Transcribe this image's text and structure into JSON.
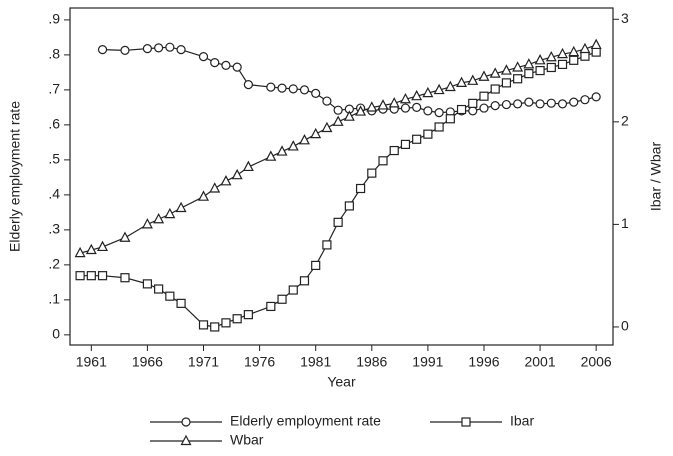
{
  "chart_data": {
    "type": "line",
    "xlabel": "Year",
    "ylabel": "Elderly employment rate",
    "y2label": "Ibar / Wbar",
    "x": [
      1960,
      1961,
      1962,
      1964,
      1966,
      1967,
      1968,
      1969,
      1971,
      1972,
      1973,
      1974,
      1975,
      1977,
      1978,
      1979,
      1980,
      1981,
      1982,
      1983,
      1984,
      1985,
      1986,
      1987,
      1988,
      1989,
      1990,
      1991,
      1992,
      1993,
      1994,
      1995,
      1996,
      1997,
      1998,
      1999,
      2000,
      2001,
      2002,
      2003,
      2004,
      2005,
      2006
    ],
    "xlim": [
      1959.1,
      2007.5
    ],
    "xticks": [
      1961,
      1966,
      1971,
      1976,
      1981,
      1986,
      1991,
      1996,
      2001,
      2006
    ],
    "ylim": [
      -0.029,
      0.934
    ],
    "yticks": [
      {
        "value": 0,
        "label": "0"
      },
      {
        "value": 0.1,
        "label": ".1"
      },
      {
        "value": 0.2,
        "label": ".2"
      },
      {
        "value": 0.3,
        "label": ".3"
      },
      {
        "value": 0.4,
        "label": ".4"
      },
      {
        "value": 0.5,
        "label": ".5"
      },
      {
        "value": 0.6,
        "label": ".6"
      },
      {
        "value": 0.7,
        "label": ".7"
      },
      {
        "value": 0.8,
        "label": ".8"
      },
      {
        "value": 0.9,
        "label": ".9"
      }
    ],
    "y2lim": [
      -0.176,
      3.11
    ],
    "y2ticks": [
      0,
      1,
      2,
      3
    ],
    "series": [
      {
        "name": "Elderly employment rate",
        "color": "#222222",
        "marker": "circle",
        "values": [
          null,
          null,
          0.815,
          0.813,
          0.818,
          0.82,
          0.822,
          0.815,
          0.795,
          0.778,
          0.77,
          0.765,
          0.715,
          0.708,
          0.705,
          0.703,
          0.7,
          0.69,
          0.668,
          0.642,
          0.645,
          0.648,
          0.64,
          0.645,
          0.645,
          0.648,
          0.65,
          0.64,
          0.635,
          0.637,
          0.64,
          0.64,
          0.648,
          0.655,
          0.658,
          0.66,
          0.665,
          0.66,
          0.662,
          0.66,
          0.665,
          0.672,
          0.68
        ]
      },
      {
        "name": "Ibar",
        "color": "#222222",
        "marker": "square",
        "axis": "y2",
        "values": [
          0.5,
          0.5,
          0.5,
          0.48,
          0.42,
          0.37,
          0.3,
          0.23,
          0.02,
          0.0,
          0.04,
          0.08,
          0.12,
          0.2,
          0.27,
          0.36,
          0.45,
          0.6,
          0.8,
          1.02,
          1.18,
          1.35,
          1.5,
          1.62,
          1.72,
          1.78,
          1.83,
          1.88,
          1.95,
          2.03,
          2.12,
          2.18,
          2.25,
          2.32,
          2.38,
          2.42,
          2.47,
          2.5,
          2.53,
          2.56,
          2.6,
          2.64,
          2.68
        ]
      },
      {
        "name": "Wbar",
        "color": "#222222",
        "marker": "triangle",
        "axis": "y2",
        "values": [
          0.72,
          0.75,
          0.78,
          0.87,
          1.0,
          1.05,
          1.1,
          1.16,
          1.27,
          1.35,
          1.42,
          1.48,
          1.56,
          1.66,
          1.71,
          1.76,
          1.82,
          1.88,
          1.94,
          2.0,
          2.05,
          2.1,
          2.14,
          2.16,
          2.18,
          2.22,
          2.25,
          2.28,
          2.31,
          2.34,
          2.38,
          2.4,
          2.44,
          2.47,
          2.5,
          2.53,
          2.56,
          2.6,
          2.63,
          2.66,
          2.68,
          2.71,
          2.75
        ]
      }
    ]
  }
}
